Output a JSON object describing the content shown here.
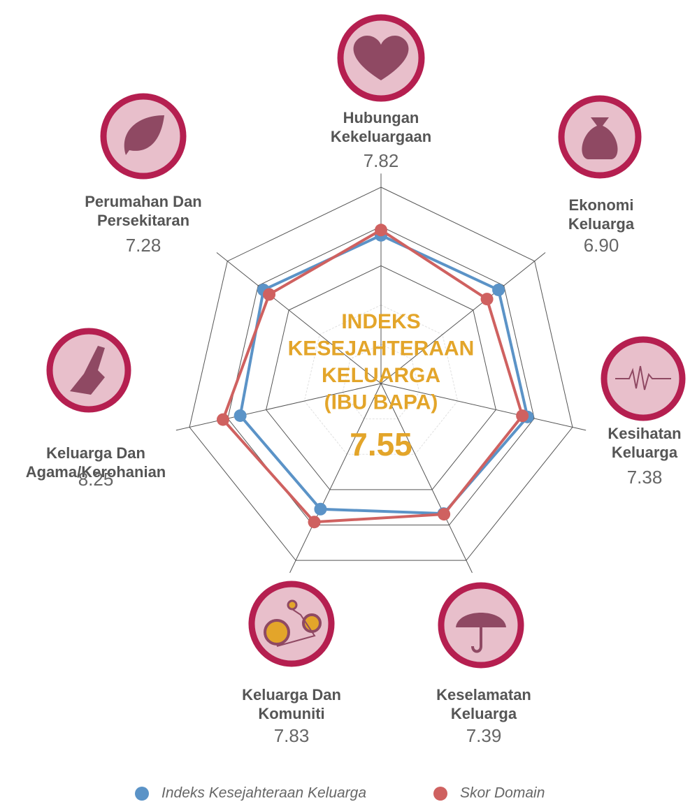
{
  "chart_data": {
    "type": "radar",
    "center_title": [
      "INDEKS",
      "KESEJAHTERAAN",
      "KELUARGA",
      "(IBU BAPA)"
    ],
    "center_value": 7.55,
    "categories": [
      [
        "Hubungan",
        "Kekeluargaan"
      ],
      [
        "Ekonomi",
        "Keluarga"
      ],
      [
        "Kesihatan",
        "Keluarga"
      ],
      [
        "Keselamatan",
        "Keluarga"
      ],
      [
        "Keluarga Dan",
        "Komuniti"
      ],
      [
        "Keluarga Dan",
        "Agama/Kerohanian"
      ],
      [
        "Perumahan Dan",
        "Persekitaran"
      ]
    ],
    "series": [
      {
        "name": "Indeks Kesejahteraan Keluarga",
        "color": "#5b93c7",
        "values": [
          7.55,
          7.65,
          7.65,
          7.35,
          7.1,
          7.35,
          7.65
        ]
      },
      {
        "name": "Skor Domain",
        "color": "#cf6160",
        "values": [
          7.82,
          6.9,
          7.38,
          7.39,
          7.83,
          8.25,
          7.28
        ],
        "value_labels": [
          "7.82",
          "6.90",
          "7.38",
          "7.39",
          "7.83",
          "8.25",
          "7.28"
        ]
      }
    ],
    "rlim": [
      0,
      10
    ],
    "rticks": [
      2,
      4,
      6,
      8,
      10
    ]
  }
}
